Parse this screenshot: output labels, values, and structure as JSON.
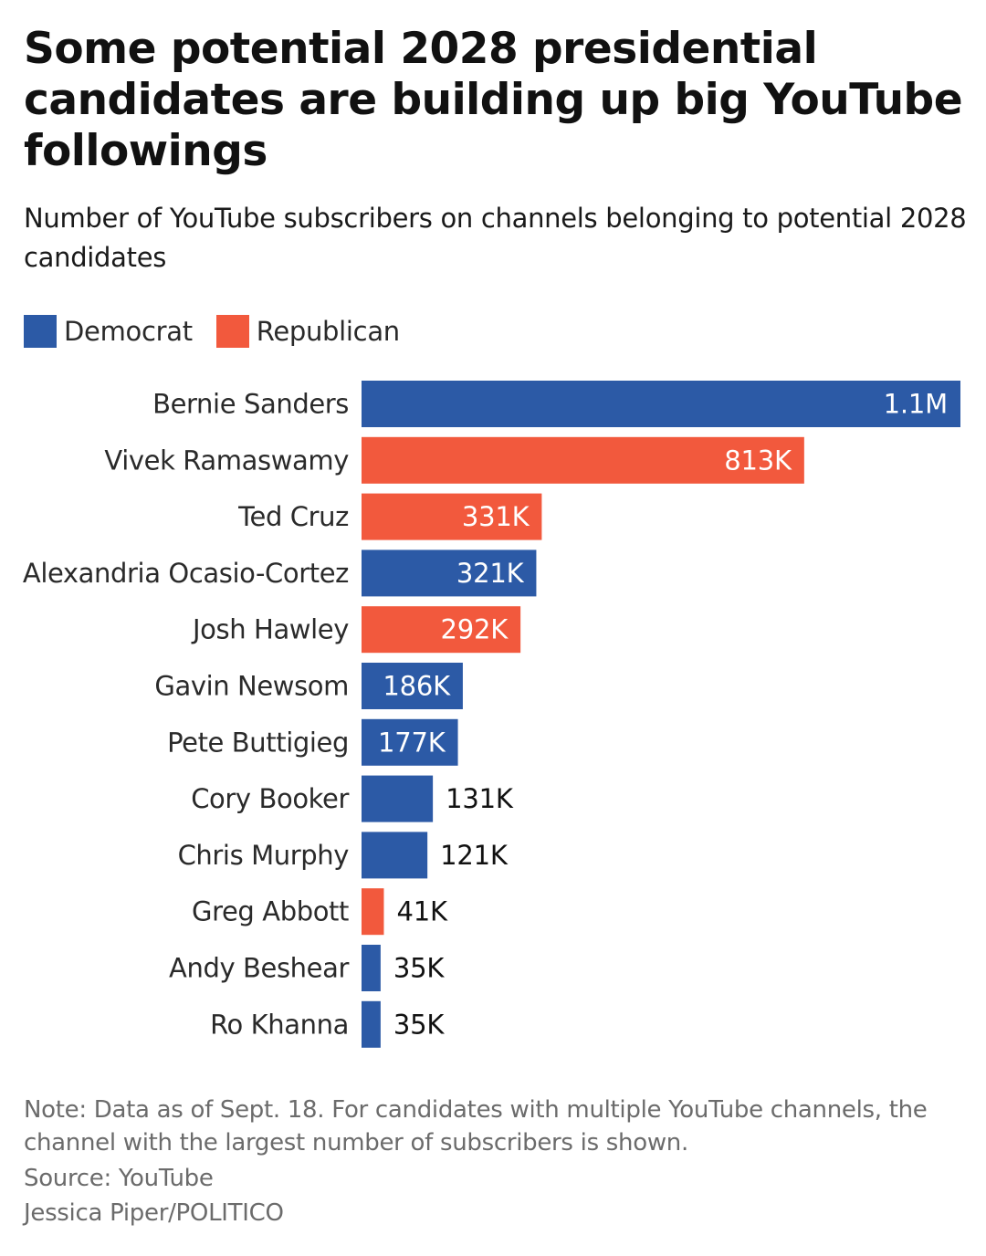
{
  "title": "Some potential 2028 presidential candidates are building up big YouTube followings",
  "subtitle": "Number of YouTube subscribers on channels belonging to potential 2028 candidates",
  "legend": [
    {
      "label": "Democrat",
      "color": "#2c5aa6"
    },
    {
      "label": "Republican",
      "color": "#f2593d"
    }
  ],
  "chart_data": {
    "type": "bar",
    "orientation": "horizontal",
    "categories": [
      "Bernie Sanders",
      "Vivek Ramaswamy",
      "Ted Cruz",
      "Alexandria Ocasio-Cortez",
      "Josh Hawley",
      "Gavin Newsom",
      "Pete Buttigieg",
      "Cory Booker",
      "Chris Murphy",
      "Greg Abbott",
      "Andy Beshear",
      "Ro Khanna"
    ],
    "values": [
      1100000,
      813000,
      331000,
      321000,
      292000,
      186000,
      177000,
      131000,
      121000,
      41000,
      35000,
      35000
    ],
    "value_labels": [
      "1.1M",
      "813K",
      "331K",
      "321K",
      "292K",
      "186K",
      "177K",
      "131K",
      "121K",
      "41K",
      "35K",
      "35K"
    ],
    "party": [
      "Democrat",
      "Republican",
      "Republican",
      "Democrat",
      "Republican",
      "Democrat",
      "Democrat",
      "Democrat",
      "Democrat",
      "Republican",
      "Democrat",
      "Democrat"
    ],
    "colors": {
      "Democrat": "#2c5aa6",
      "Republican": "#f2593d"
    },
    "xlim": [
      0,
      1100000
    ],
    "grid": false,
    "legend_position": "top-left"
  },
  "footer": {
    "note": "Note: Data as of Sept. 18. For candidates with multiple YouTube channels, the channel with the largest number of subscribers is shown.",
    "source": "Source: YouTube",
    "credit": "Jessica Piper/POLITICO"
  }
}
